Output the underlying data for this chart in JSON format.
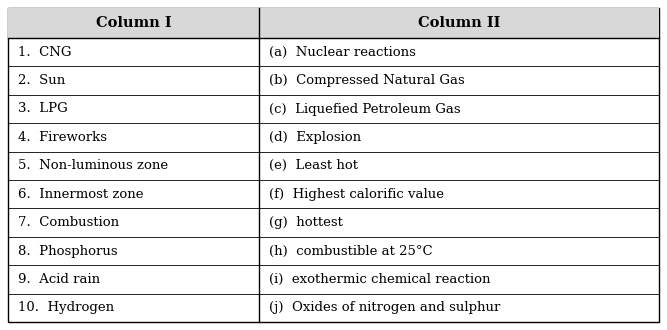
{
  "col1_header": "Column I",
  "col2_header": "Column II",
  "col1_items": [
    "1.  CNG",
    "2.  Sun",
    "3.  LPG",
    "4.  Fireworks",
    "5.  Non-luminous zone",
    "6.  Innermost zone",
    "7.  Combustion",
    "8.  Phosphorus",
    "9.  Acid rain",
    "10.  Hydrogen"
  ],
  "col2_items": [
    "(a)  Nuclear reactions",
    "(b)  Compressed Natural Gas",
    "(c)  Liquefied Petroleum Gas",
    "(d)  Explosion",
    "(e)  Least hot",
    "(f)  Highest calorific value",
    "(g)  hottest",
    "(h)  combustible at 25°C",
    "(i)  exothermic chemical reaction",
    "(j)  Oxides of nitrogen and sulphur"
  ],
  "bg_color": "#ffffff",
  "header_bg": "#d8d8d8",
  "border_color": "#000000",
  "text_color": "#000000",
  "header_fontsize": 10.5,
  "row_fontsize": 9.5,
  "fig_width": 6.67,
  "fig_height": 3.3,
  "dpi": 100
}
